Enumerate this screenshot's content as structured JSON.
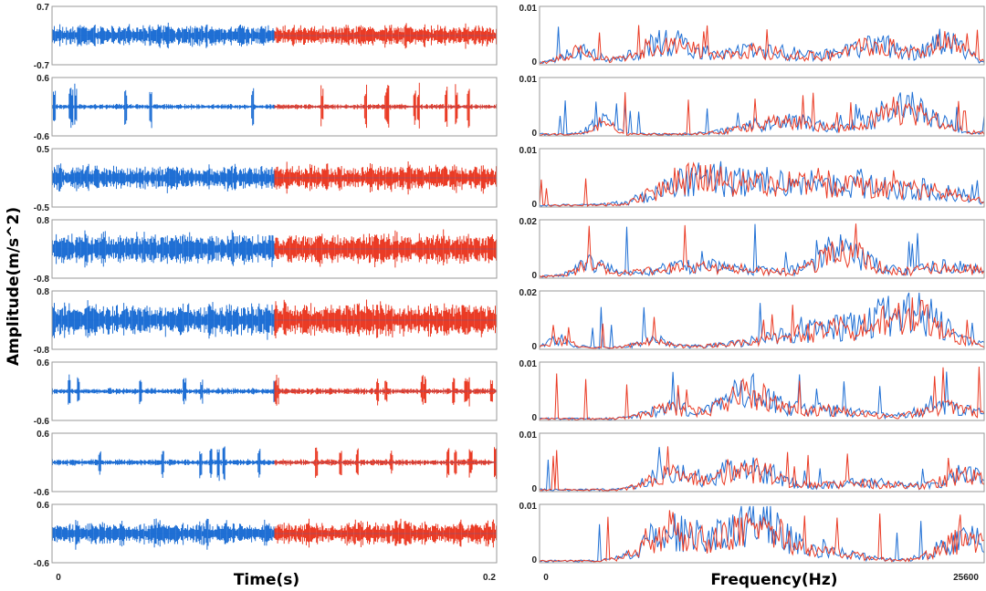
{
  "figure": {
    "y_label": "Amplitude(m/s^2)",
    "time_xlabel": "Time(s)",
    "freq_xlabel": "Frequency(Hz)",
    "time_xticks": [
      "0",
      "0.2"
    ],
    "freq_xticks": [
      "0",
      "25600"
    ],
    "colors": {
      "first_half": "#1f6fd4",
      "second_half": "#ea3b25",
      "frame": "#9a9a9a"
    }
  },
  "chart_data": {
    "type": "line",
    "time_axis": {
      "xlabel": "Time(s)",
      "xlim": [
        0,
        0.2
      ],
      "ylabel": "Amplitude(m/s^2)"
    },
    "frequency_axis": {
      "xlabel": "Frequency(Hz)",
      "xlim": [
        0,
        25600
      ]
    },
    "rows": [
      {
        "time_ylim": [
          -0.7,
          0.7
        ],
        "time_ytick_labels": [
          "0.7",
          "-0.7"
        ],
        "freq_ylim": [
          0,
          0.01
        ],
        "freq_ytick_labels": [
          "0.01",
          "0"
        ],
        "signal": {
          "style": "dense",
          "peak": 0.22,
          "burst": 0.35
        },
        "spectrum": {
          "peaks": [
            [
              2300,
              0.002,
              900
            ],
            [
              7300,
              0.0035,
              1500
            ],
            [
              13000,
              0.0022,
              2200
            ],
            [
              19400,
              0.0032,
              1700
            ],
            [
              23600,
              0.0038,
              900
            ]
          ],
          "peak_max": 0.007
        }
      },
      {
        "time_ylim": [
          -0.6,
          0.6
        ],
        "time_ytick_labels": [
          "0.6",
          "-0.6"
        ],
        "freq_ylim": [
          0,
          0.01
        ],
        "freq_ytick_labels": [
          "0.01",
          "0"
        ],
        "signal": {
          "style": "impulsive",
          "peak": 0.05,
          "burst": 0.5
        },
        "spectrum": {
          "peaks": [
            [
              3600,
              0.0022,
              600
            ],
            [
              14000,
              0.0022,
              2000
            ],
            [
              21000,
              0.0045,
              1800
            ]
          ],
          "peak_max": 0.0075
        }
      },
      {
        "time_ylim": [
          -0.5,
          0.5
        ],
        "time_ytick_labels": [
          "0.5",
          "-0.5"
        ],
        "freq_ylim": [
          0,
          0.01
        ],
        "freq_ytick_labels": [
          "0.01",
          "0"
        ],
        "signal": {
          "style": "dense",
          "peak": 0.18,
          "burst": 0.3
        },
        "spectrum": {
          "peaks": [
            [
              8500,
              0.0038,
              1800
            ],
            [
              12500,
              0.0032,
              2500
            ],
            [
              17500,
              0.003,
              2500
            ],
            [
              22500,
              0.0022,
              2200
            ]
          ],
          "peak_max": 0.0068
        }
      },
      {
        "time_ylim": [
          -0.8,
          0.8
        ],
        "time_ytick_labels": [
          "0.8",
          "-0.8"
        ],
        "freq_ylim": [
          0,
          0.02
        ],
        "freq_ytick_labels": [
          "0.02",
          "0"
        ],
        "signal": {
          "style": "dense",
          "peak": 0.35,
          "burst": 0.55
        },
        "spectrum": {
          "peaks": [
            [
              3000,
              0.004,
              800
            ],
            [
              9500,
              0.0035,
              3000
            ],
            [
              17500,
              0.0085,
              1500
            ],
            [
              23500,
              0.0035,
              1800
            ]
          ],
          "peak_max": 0.019
        }
      },
      {
        "time_ylim": [
          -0.8,
          0.8
        ],
        "time_ytick_labels": [
          "0.8",
          "-0.8"
        ],
        "freq_ylim": [
          0,
          0.02
        ],
        "freq_ytick_labels": [
          "0.02",
          "0"
        ],
        "signal": {
          "style": "dense",
          "peak": 0.4,
          "burst": 0.6
        },
        "spectrum": {
          "peaks": [
            [
              1200,
              0.003,
              600
            ],
            [
              6500,
              0.0025,
              800
            ],
            [
              18000,
              0.007,
              3800
            ],
            [
              21500,
              0.0085,
              1500
            ]
          ],
          "peak_max": 0.016
        }
      },
      {
        "time_ylim": [
          -0.6,
          0.6
        ],
        "time_ytick_labels": [
          "0.6",
          "-0.6"
        ],
        "freq_ylim": [
          0,
          0.01
        ],
        "freq_ytick_labels": [
          "0.01",
          "0"
        ],
        "signal": {
          "style": "impulsive",
          "peak": 0.06,
          "burst": 0.35
        },
        "spectrum": {
          "peaks": [
            [
              7500,
              0.0018,
              1200
            ],
            [
              12000,
              0.0045,
              1400
            ],
            [
              16500,
              0.0015,
              2000
            ],
            [
              23500,
              0.002,
              1600
            ]
          ],
          "peak_max": 0.0095
        }
      },
      {
        "time_ylim": [
          -0.6,
          0.6
        ],
        "time_ytick_labels": [
          "0.6",
          "-0.6"
        ],
        "freq_ylim": [
          0,
          0.01
        ],
        "freq_ytick_labels": [
          "0.01",
          "0"
        ],
        "signal": {
          "style": "impulsive",
          "peak": 0.06,
          "burst": 0.4
        },
        "spectrum": {
          "peaks": [
            [
              7500,
              0.0028,
              1200
            ],
            [
              11800,
              0.0038,
              1600
            ],
            [
              18500,
              0.0012,
              2500
            ],
            [
              24500,
              0.0026,
              1200
            ]
          ],
          "peak_max": 0.008
        }
      },
      {
        "time_ylim": [
          -0.6,
          0.6
        ],
        "time_ytick_labels": [
          "0.6",
          "-0.6"
        ],
        "freq_ylim": [
          0,
          0.01
        ],
        "freq_ytick_labels": [
          "0.01",
          "0"
        ],
        "signal": {
          "style": "dense",
          "peak": 0.2,
          "burst": 0.35
        },
        "spectrum": {
          "peaks": [
            [
              7700,
              0.0048,
              1500
            ],
            [
              12300,
              0.0065,
              1700
            ],
            [
              16500,
              0.0015,
              1800
            ],
            [
              24500,
              0.0038,
              1400
            ]
          ],
          "peak_max": 0.0092
        }
      }
    ]
  }
}
